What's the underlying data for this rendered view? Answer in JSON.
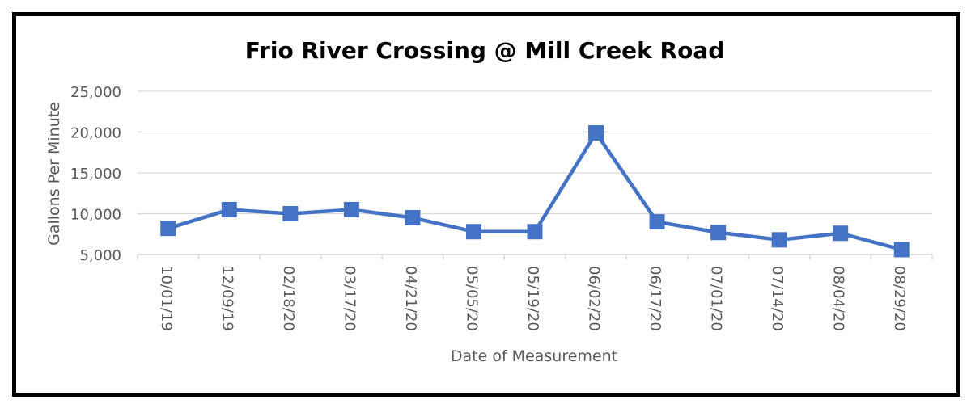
{
  "chart_data": {
    "type": "line",
    "title": "Frio River Crossing @ Mill Creek Road",
    "xlabel": "Date of Measurement",
    "ylabel": "Gallons Per Minute",
    "categories": [
      "10/01/19",
      "12/09/19",
      "02/18/20",
      "03/17/20",
      "04/21/20",
      "05/05/20",
      "05/19/20",
      "06/02/20",
      "06/17/20",
      "07/01/20",
      "07/14/20",
      "08/04/20",
      "08/29/20"
    ],
    "series": [
      {
        "values": [
          8200,
          10500,
          10000,
          10500,
          9500,
          7800,
          7800,
          19900,
          9000,
          7700,
          6800,
          7600,
          5600
        ],
        "color": "#4472c4",
        "marker": "square"
      }
    ],
    "ylim": [
      5000,
      25000
    ],
    "yticks": [
      5000,
      10000,
      15000,
      20000,
      25000
    ],
    "ytick_labels": [
      "5,000",
      "10,000",
      "15,000",
      "20,000",
      "25,000"
    ],
    "grid": true,
    "gridline_color": "#d9d9d9",
    "legend": "none"
  }
}
